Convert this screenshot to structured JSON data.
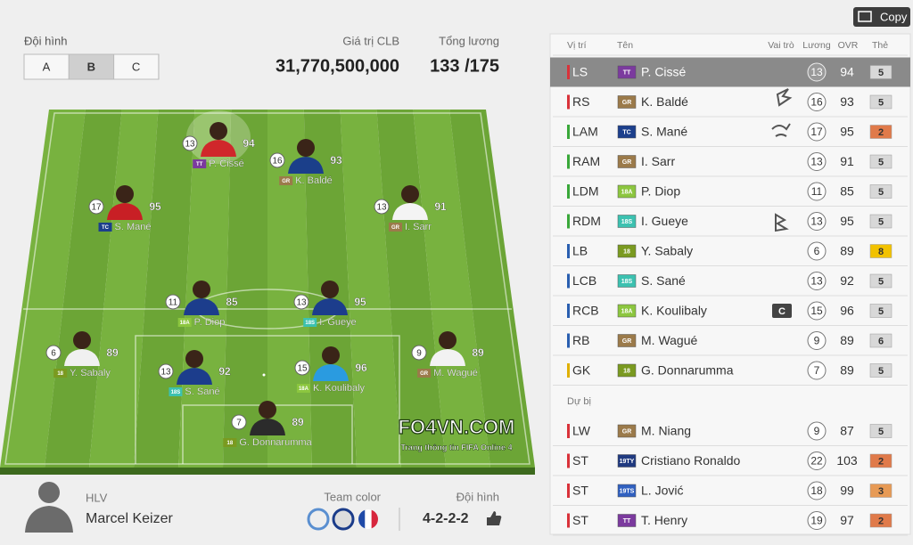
{
  "header": {
    "lineup_label": "Đội hình",
    "tabs": [
      "A",
      "B",
      "C"
    ],
    "selected_tab": 1,
    "club_value_label": "Giá trị CLB",
    "club_value": "31,770,500,000",
    "salary_label": "Tổng lương",
    "salary": "133 /175"
  },
  "copy_button": "Copy",
  "table": {
    "columns": [
      "Vị trí",
      "Tên",
      "Vai trò",
      "Lương",
      "OVR",
      "Thẻ"
    ],
    "starters": [
      {
        "pos": "LS",
        "season": "TT",
        "name": "P. Cissé",
        "salary": 13,
        "ovr": 94,
        "card": 5,
        "pos_color": "#d9323a",
        "season_color": "#7b3a9e",
        "card_color": "#d8d8d8"
      },
      {
        "pos": "RS",
        "season": "GR",
        "name": "K. Baldé",
        "salary": 16,
        "ovr": 93,
        "card": 5,
        "pos_color": "#d9323a",
        "season_color": "#9b7a4a",
        "card_color": "#d8d8d8"
      },
      {
        "pos": "LAM",
        "season": "TC",
        "name": "S. Mané",
        "salary": 17,
        "ovr": 95,
        "card": 2,
        "pos_color": "#3aa83a",
        "season_color": "#1c3f8c",
        "card_color": "#e07a4a"
      },
      {
        "pos": "RAM",
        "season": "GR",
        "name": "I. Sarr",
        "salary": 13,
        "ovr": 91,
        "card": 5,
        "pos_color": "#3aa83a",
        "season_color": "#9b7a4a",
        "card_color": "#d8d8d8"
      },
      {
        "pos": "LDM",
        "season": "18A",
        "name": "P. Diop",
        "salary": 11,
        "ovr": 85,
        "card": 5,
        "pos_color": "#3aa83a",
        "season_color": "#8cc63f",
        "card_color": "#d8d8d8"
      },
      {
        "pos": "RDM",
        "season": "18S",
        "name": "I. Gueye",
        "salary": 13,
        "ovr": 95,
        "card": 5,
        "pos_color": "#3aa83a",
        "season_color": "#3cc1b0",
        "card_color": "#d8d8d8"
      },
      {
        "pos": "LB",
        "season": "18",
        "name": "Y. Sabaly",
        "salary": 6,
        "ovr": 89,
        "card": 8,
        "pos_color": "#2a5fb0",
        "season_color": "#7a9a20",
        "card_color": "#f2c200"
      },
      {
        "pos": "LCB",
        "season": "18S",
        "name": "S. Sané",
        "salary": 13,
        "ovr": 92,
        "card": 5,
        "pos_color": "#2a5fb0",
        "season_color": "#3cc1b0",
        "card_color": "#d8d8d8"
      },
      {
        "pos": "RCB",
        "season": "18A",
        "name": "K. Koulibaly",
        "salary": 15,
        "ovr": 96,
        "card": 5,
        "pos_color": "#2a5fb0",
        "season_color": "#8cc63f",
        "card_color": "#d8d8d8",
        "badge": "C"
      },
      {
        "pos": "RB",
        "season": "GR",
        "name": "M. Wagué",
        "salary": 9,
        "ovr": 89,
        "card": 6,
        "pos_color": "#2a5fb0",
        "season_color": "#9b7a4a",
        "card_color": "#d8d8d8"
      },
      {
        "pos": "GK",
        "season": "18",
        "name": "G. Donnarumma",
        "salary": 7,
        "ovr": 89,
        "card": 5,
        "pos_color": "#e0b000",
        "season_color": "#7a9a20",
        "card_color": "#d8d8d8"
      }
    ],
    "bench_label": "Dự bị",
    "bench": [
      {
        "pos": "LW",
        "season": "GR",
        "name": "M. Niang",
        "salary": 9,
        "ovr": 87,
        "card": 5,
        "pos_color": "#d9323a",
        "season_color": "#9b7a4a",
        "card_color": "#d8d8d8"
      },
      {
        "pos": "ST",
        "season": "19TY",
        "name": "Cristiano Ronaldo",
        "salary": 22,
        "ovr": 103,
        "card": 2,
        "pos_color": "#d9323a",
        "season_color": "#203a80",
        "card_color": "#e07a4a"
      },
      {
        "pos": "ST",
        "season": "19TS",
        "name": "L. Jović",
        "salary": 18,
        "ovr": 99,
        "card": 3,
        "pos_color": "#d9323a",
        "season_color": "#3060c0",
        "card_color": "#e79a55"
      },
      {
        "pos": "ST",
        "season": "TT",
        "name": "T. Henry",
        "salary": 19,
        "ovr": 97,
        "card": 2,
        "pos_color": "#d9323a",
        "season_color": "#7b3a9e",
        "card_color": "#e07a4a"
      }
    ]
  },
  "watermark": {
    "title": "FO4VN.COM",
    "subtitle": "Trang thông tin FIFA Online 4"
  },
  "coach": {
    "label": "HLV",
    "name": "Marcel Keizer"
  },
  "team_color_label": "Team color",
  "formation": {
    "label": "Đội hình",
    "value": "4-2-2-2"
  }
}
